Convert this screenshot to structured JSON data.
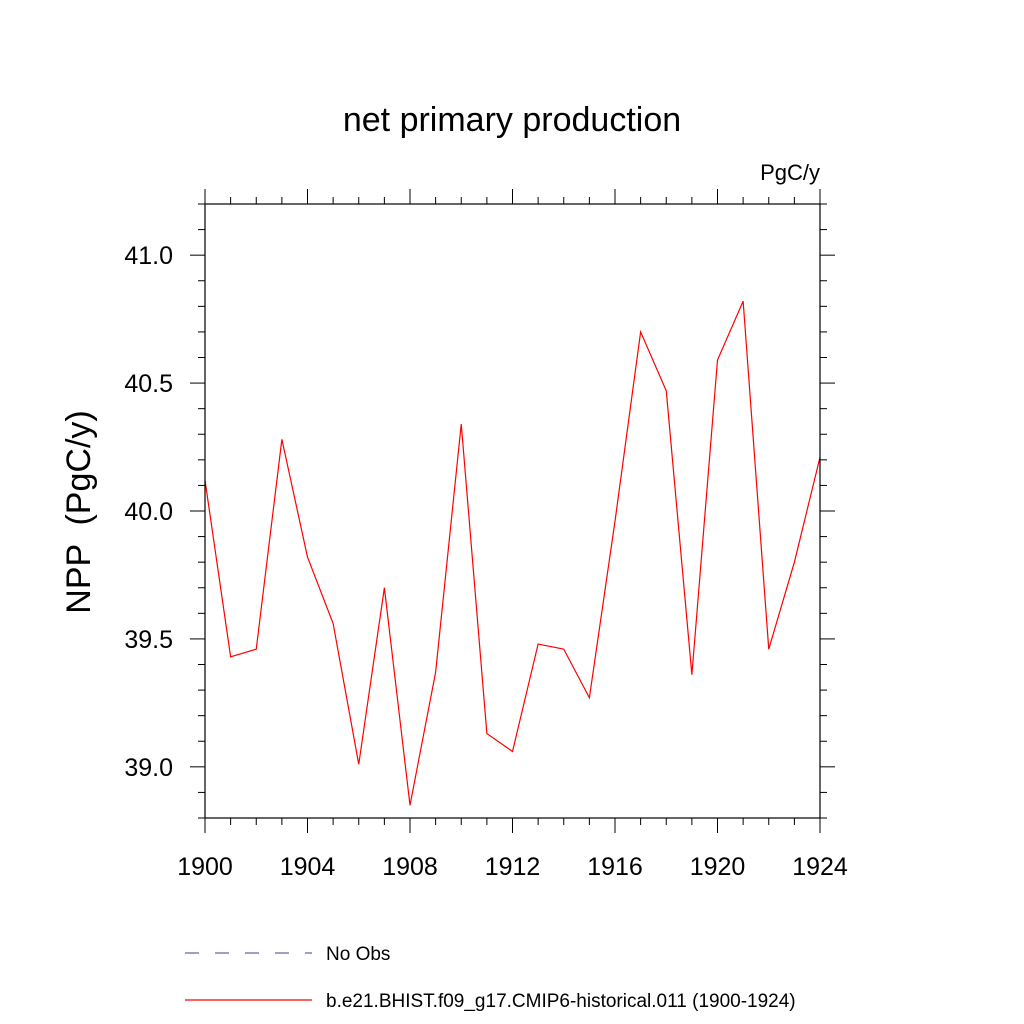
{
  "chart_data": {
    "type": "line",
    "title": "net primary production",
    "units_label": "PgC/y",
    "xlabel": "",
    "ylabel": "NPP  (PgC/y)",
    "xlim": [
      1900,
      1924
    ],
    "ylim": [
      38.8,
      41.2
    ],
    "x_ticks": [
      1900,
      1904,
      1908,
      1912,
      1916,
      1920,
      1924
    ],
    "x_tick_labels": [
      "1900",
      "1904",
      "1908",
      "1912",
      "1916",
      "1920",
      "1924"
    ],
    "y_ticks": [
      39.0,
      39.5,
      40.0,
      40.5,
      41.0
    ],
    "y_tick_labels": [
      "39.0",
      "39.5",
      "40.0",
      "40.5",
      "41.0"
    ],
    "grid": false,
    "legend_position": "bottom",
    "series": [
      {
        "name": "b.e21.BHIST.f09_g17.CMIP6-historical.011 (1900-1924)",
        "color": "#ff0000",
        "style": "solid",
        "x": [
          1900,
          1901,
          1902,
          1903,
          1904,
          1905,
          1906,
          1907,
          1908,
          1909,
          1910,
          1911,
          1912,
          1913,
          1914,
          1915,
          1916,
          1917,
          1918,
          1919,
          1920,
          1921,
          1922,
          1923,
          1924
        ],
        "values": [
          40.12,
          39.43,
          39.46,
          40.28,
          39.82,
          39.56,
          39.01,
          39.7,
          38.85,
          39.37,
          40.34,
          39.13,
          39.06,
          39.48,
          39.46,
          39.27,
          39.96,
          40.7,
          40.47,
          39.36,
          40.59,
          40.82,
          39.46,
          39.8,
          40.21
        ]
      }
    ],
    "legend": [
      {
        "label": "No Obs",
        "color": "#6666aa",
        "style": "dashed"
      },
      {
        "label": "b.e21.BHIST.f09_g17.CMIP6-historical.011 (1900-1924)",
        "color": "#ff0000",
        "style": "solid"
      }
    ]
  }
}
